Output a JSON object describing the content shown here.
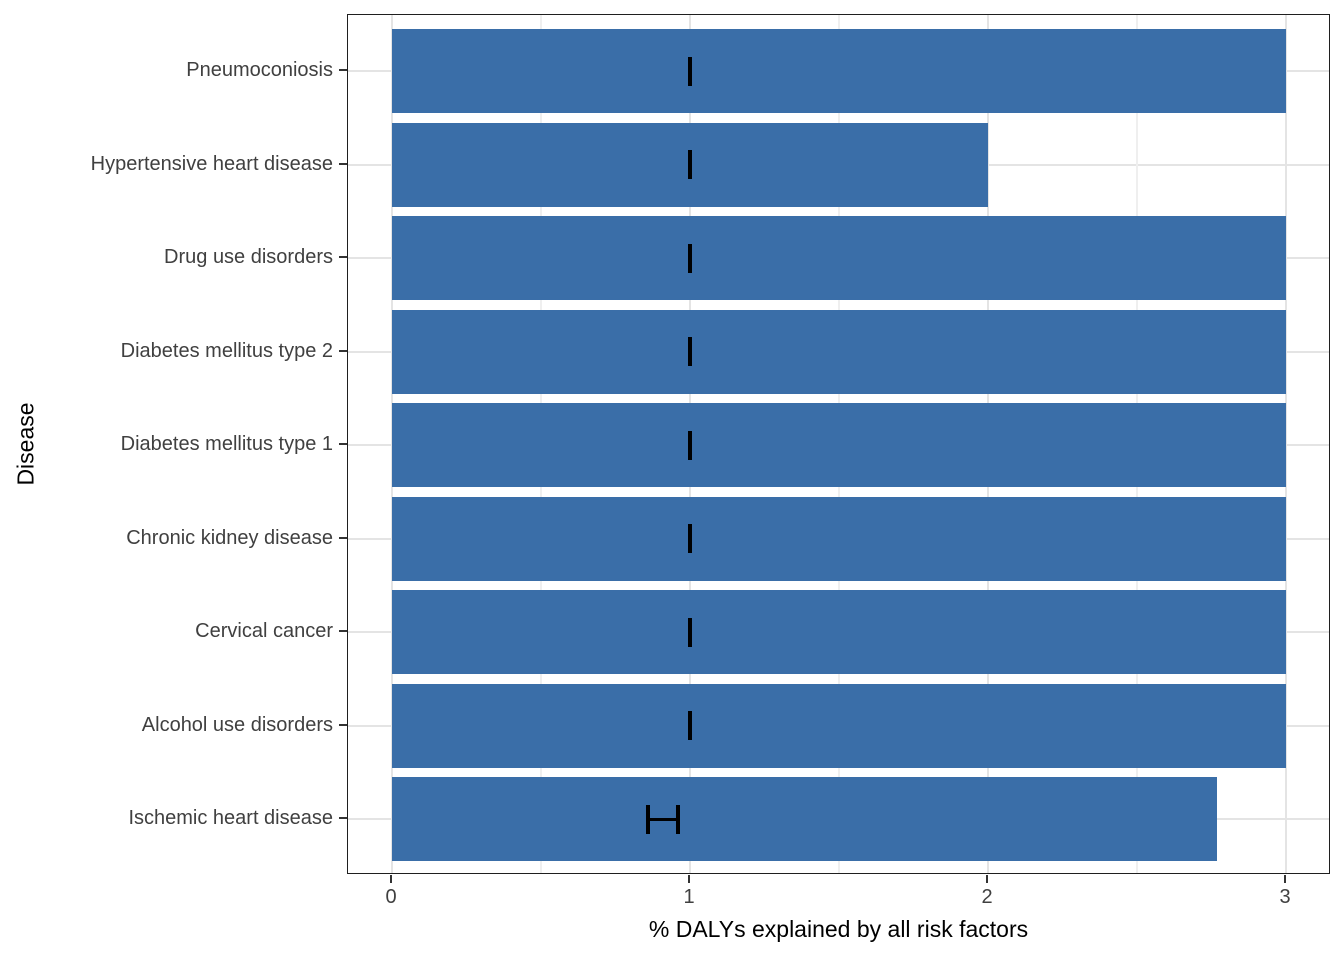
{
  "chart_data": {
    "type": "bar",
    "orientation": "horizontal",
    "title": "",
    "xlabel": "% DALYs explained by all risk factors",
    "ylabel": "Disease",
    "xlim": [
      0,
      3
    ],
    "x_ticks": [
      0,
      1,
      2,
      3
    ],
    "x_minor_gridlines": [
      0.5,
      1.5,
      2.5
    ],
    "grid": "vertical major+minor, horizontal major per category",
    "legend_position": "none",
    "bar_color": "#3a6ea8",
    "error_color": "#000000",
    "bars": [
      {
        "category": "Pneumoconiosis",
        "value": 3.0,
        "error_low": 1.0,
        "error_high": 1.0
      },
      {
        "category": "Hypertensive heart disease",
        "value": 2.0,
        "error_low": 1.0,
        "error_high": 1.0
      },
      {
        "category": "Drug use disorders",
        "value": 3.0,
        "error_low": 1.0,
        "error_high": 1.0
      },
      {
        "category": "Diabetes mellitus type 2",
        "value": 3.0,
        "error_low": 1.0,
        "error_high": 1.0
      },
      {
        "category": "Diabetes mellitus type 1",
        "value": 3.0,
        "error_low": 1.0,
        "error_high": 1.0
      },
      {
        "category": "Chronic kidney disease",
        "value": 3.0,
        "error_low": 1.0,
        "error_high": 1.0
      },
      {
        "category": "Cervical cancer",
        "value": 3.0,
        "error_low": 1.0,
        "error_high": 1.0
      },
      {
        "category": "Alcohol use disorders",
        "value": 3.0,
        "error_low": 1.0,
        "error_high": 1.0
      },
      {
        "category": "Ischemic heart disease",
        "value": 2.77,
        "error_low": 0.86,
        "error_high": 0.96
      }
    ]
  }
}
